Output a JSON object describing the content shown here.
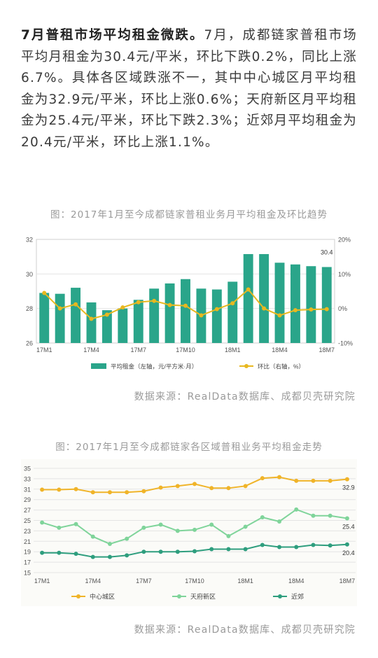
{
  "article": {
    "lead_bold": "7月普租市场平均租金微跌。",
    "body": "7月，成都链家普租市场平均月租金为30.4元/平米，环比下跌0.2%，同比上涨6.7%。具体各区域跌涨不一，其中中心城区月平均租金为32.9元/平米，环比上涨0.6%；天府新区月平均租金为25.4元/平米，环比下跌2.3%；近郊月平均租金为20.4元/平米，环比上涨1.1%。"
  },
  "chart1": {
    "caption": "图：2017年1月至今成都链家普租业务月平均租金及环比趋势",
    "source": "数据来源：RealData数据库、成都贝壳研究院"
  },
  "chart2": {
    "caption": "图：2017年1月至今成都链家各区域普租业务平均租金走势",
    "source": "数据来源：RealData数据库、成都贝壳研究院"
  },
  "colors": {
    "bar": "#2aa58a",
    "mom_line": "#e8b820",
    "central": "#f0b429",
    "tianfu": "#7fd49a",
    "suburb": "#2e9e7e",
    "grid": "#e4e4e4"
  },
  "chart_data": [
    {
      "type": "bar",
      "categories": [
        "17M1",
        "17M2",
        "17M3",
        "17M4",
        "17M5",
        "17M6",
        "17M7",
        "17M8",
        "17M9",
        "17M10",
        "17M11",
        "17M12",
        "18M1",
        "18M2",
        "18M3",
        "18M4",
        "18M5",
        "18M6",
        "18M7"
      ],
      "xticks": [
        "17M1",
        "17M4",
        "17M7",
        "17M10",
        "18M1",
        "18M4",
        "18M7"
      ],
      "yticks_left": [
        "26",
        "28",
        "30",
        "32"
      ],
      "yticks_right": [
        "-10%",
        "0%",
        "10%",
        "20%"
      ],
      "ylim": [
        26,
        32
      ],
      "y2lim": [
        -10,
        20
      ],
      "series": [
        {
          "name": "平均租金（左轴，元/平方米·月）",
          "type": "bar",
          "axis": "left",
          "values": [
            28.9,
            28.85,
            29.2,
            28.35,
            27.9,
            28.0,
            28.5,
            29.15,
            29.45,
            29.7,
            29.15,
            29.1,
            29.55,
            31.15,
            31.15,
            30.65,
            30.55,
            30.45,
            30.4
          ]
        },
        {
          "name": "环比（右轴，%）",
          "type": "line",
          "axis": "right",
          "values": [
            4.5,
            0.0,
            1.2,
            -3.0,
            -1.8,
            0.3,
            1.8,
            2.2,
            1.0,
            0.8,
            -2.0,
            -0.2,
            1.5,
            5.5,
            0.0,
            -2.0,
            -0.5,
            -0.3,
            -0.2
          ]
        }
      ],
      "annotations": [
        {
          "text": "30.4",
          "category": "18M7"
        }
      ]
    },
    {
      "type": "line",
      "categories": [
        "17M1",
        "17M2",
        "17M3",
        "17M4",
        "17M5",
        "17M6",
        "17M7",
        "17M8",
        "17M9",
        "17M10",
        "17M11",
        "17M12",
        "18M1",
        "18M2",
        "18M3",
        "18M4",
        "18M5",
        "18M6",
        "18M7"
      ],
      "xticks": [
        "17M1",
        "17M4",
        "17M7",
        "17M10",
        "18M1",
        "18M4",
        "18M7"
      ],
      "yticks": [
        "15",
        "17",
        "19",
        "21",
        "23",
        "25",
        "27",
        "29",
        "31",
        "33",
        "35"
      ],
      "ylim": [
        15,
        35
      ],
      "series": [
        {
          "name": "中心城区",
          "values": [
            30.9,
            30.9,
            31.0,
            30.4,
            30.4,
            30.4,
            30.6,
            31.3,
            31.6,
            32.0,
            31.2,
            31.2,
            31.6,
            33.1,
            33.3,
            32.6,
            32.6,
            32.6,
            32.9
          ]
        },
        {
          "name": "天府新区",
          "values": [
            24.6,
            23.6,
            24.3,
            21.9,
            20.5,
            21.5,
            23.6,
            24.2,
            23.0,
            23.2,
            24.2,
            22.0,
            23.8,
            25.6,
            24.8,
            27.1,
            25.9,
            25.9,
            25.4
          ]
        },
        {
          "name": "近郊",
          "values": [
            18.8,
            18.8,
            18.6,
            18.0,
            18.0,
            18.3,
            19.0,
            19.0,
            19.0,
            19.1,
            19.5,
            19.5,
            19.5,
            20.3,
            19.9,
            19.9,
            20.3,
            20.2,
            20.4
          ]
        }
      ],
      "annotations": [
        {
          "text": "32.9",
          "series": "中心城区"
        },
        {
          "text": "25.4",
          "series": "天府新区"
        },
        {
          "text": "20.4",
          "series": "近郊"
        }
      ]
    }
  ]
}
